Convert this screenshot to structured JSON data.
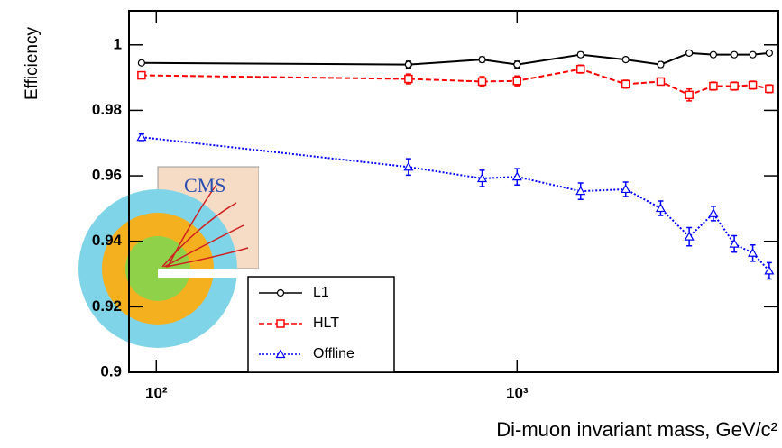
{
  "chart_data": {
    "type": "line",
    "x_label": "Di-muon invariant mass,  GeV/c²",
    "y_label": "Efficiency",
    "annotations": [
      "CMS"
    ],
    "log_x": true,
    "x": [
      91,
      500,
      800,
      1000,
      1500,
      2000,
      2500,
      3000,
      3500,
      4000,
      4500,
      5000
    ],
    "series": [
      {
        "name": "L1",
        "color": "#000000",
        "line_style": "solid",
        "marker": "circle",
        "values": [
          0.9945,
          0.994,
          0.9955,
          0.994,
          0.997,
          0.9955,
          0.994,
          0.9975,
          0.997,
          0.997,
          0.997,
          0.9975
        ],
        "errors": [
          0.0004,
          0.001,
          0.0008,
          0.001,
          0.0007,
          0.0006,
          0.0008,
          0.0005,
          0.0004,
          0.0004,
          0.0004,
          0.0005
        ]
      },
      {
        "name": "HLT",
        "color": "#ff0000",
        "line_style": "dashed",
        "marker": "square",
        "values": [
          0.9907,
          0.9896,
          0.9888,
          0.989,
          0.9926,
          0.988,
          0.9888,
          0.9847,
          0.9874,
          0.9874,
          0.9877,
          0.9866
        ],
        "errors": [
          0.0006,
          0.0015,
          0.0015,
          0.0015,
          0.0012,
          0.0012,
          0.001,
          0.0018,
          0.0012,
          0.0012,
          0.0012,
          0.0012
        ]
      },
      {
        "name": "Offline",
        "color": "#0000ff",
        "line_style": "dotted",
        "marker": "triangle",
        "values": [
          0.9718,
          0.9627,
          0.9592,
          0.9597,
          0.9553,
          0.9559,
          0.9501,
          0.9414,
          0.9485,
          0.9392,
          0.9364,
          0.931
        ],
        "errors": [
          0.001,
          0.0025,
          0.0025,
          0.0025,
          0.0025,
          0.0022,
          0.0022,
          0.0028,
          0.0022,
          0.0025,
          0.0025,
          0.0025
        ]
      }
    ],
    "xlim": [
      84,
      5300
    ],
    "ylim": [
      0.9,
      1.0104
    ],
    "xticks": [
      {
        "value": 100,
        "label": "10²"
      },
      {
        "value": 1000,
        "label": "10³"
      }
    ],
    "yticks": [
      0.9,
      0.92,
      0.94,
      0.96,
      0.98,
      1
    ],
    "legend": "bottom-left"
  }
}
